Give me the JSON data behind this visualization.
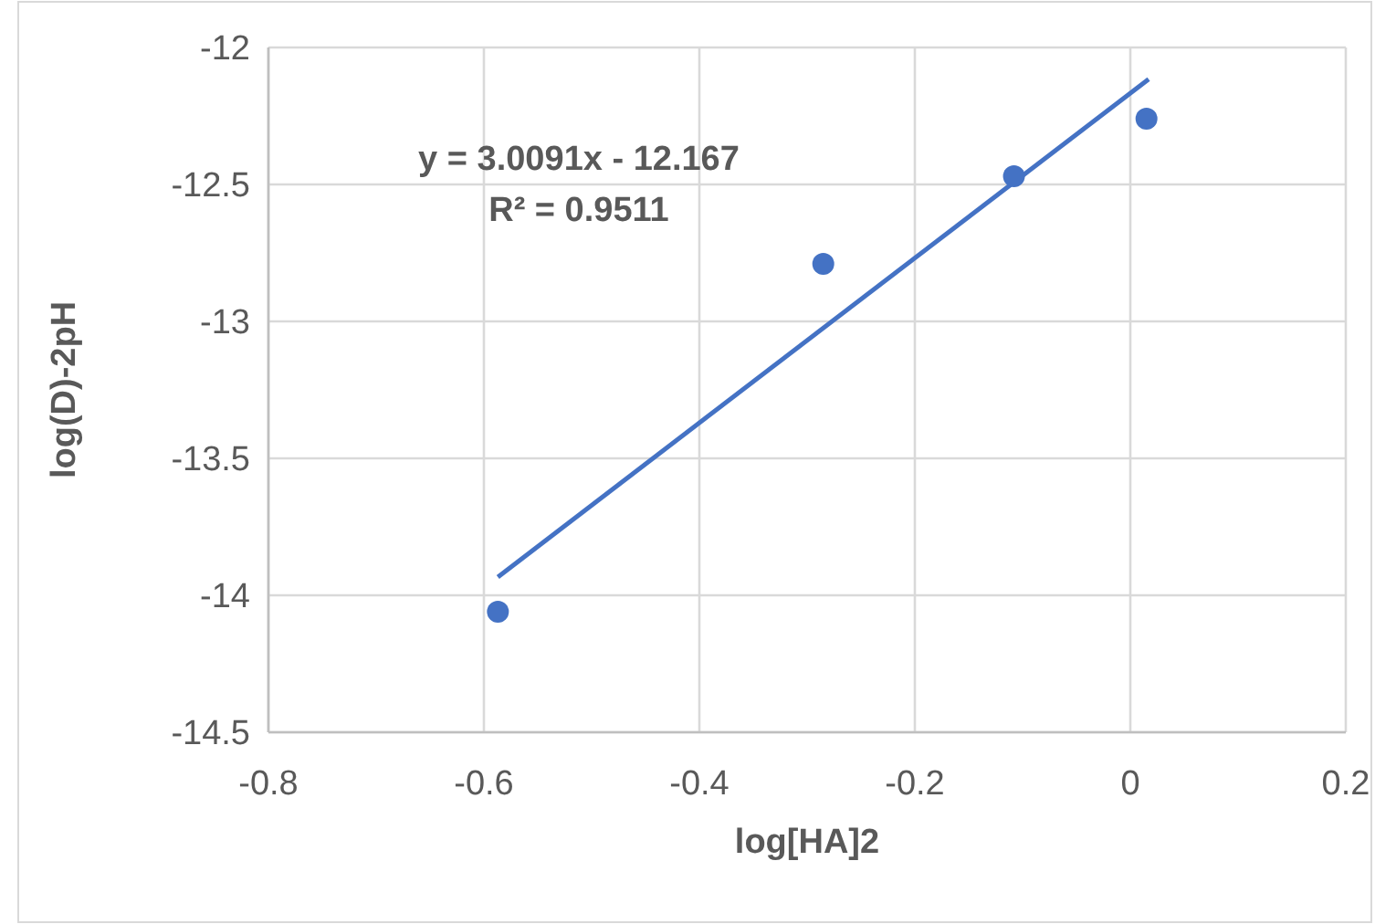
{
  "chart_data": {
    "type": "scatter",
    "xlabel": "log[HA]2",
    "ylabel": "log(D)-2pH",
    "annotations": [
      "y = 3.0091x - 12.167",
      "R² = 0.9511"
    ],
    "series": [
      {
        "type": "scatter",
        "color": "#4472c4",
        "x": [
          -0.587,
          -0.285,
          -0.108,
          0.015
        ],
        "values": [
          -14.06,
          -12.79,
          -12.47,
          -12.26
        ],
        "marker": "circle"
      },
      {
        "type": "line",
        "color": "#4472c4",
        "x": [
          -0.587,
          0.017
        ],
        "values": [
          -13.933,
          -12.116
        ],
        "marker": "none",
        "line_style": "solid"
      }
    ],
    "xlim": [
      -0.8,
      0.2
    ],
    "xticks": [
      -0.8,
      -0.6,
      -0.4,
      -0.2,
      0,
      0.2
    ],
    "ylim": [
      -14.5,
      -12
    ],
    "yticks": [
      -14.5,
      -14,
      -13.5,
      -13,
      -12.5,
      -12
    ],
    "grid": true
  }
}
